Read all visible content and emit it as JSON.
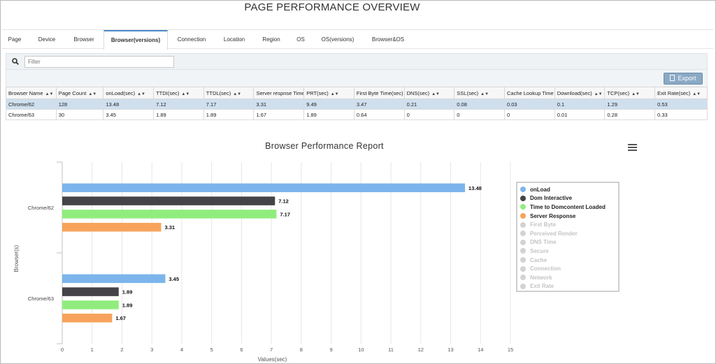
{
  "page": {
    "title": "PAGE PERFORMANCE OVERVIEW"
  },
  "tabs": [
    {
      "label": "Page"
    },
    {
      "label": "Device"
    },
    {
      "label": "Browser"
    },
    {
      "label": "Browser(versions)",
      "active": true
    },
    {
      "label": "Connection"
    },
    {
      "label": "Location"
    },
    {
      "label": "Region"
    },
    {
      "label": "OS"
    },
    {
      "label": "OS(versions)"
    },
    {
      "label": "Browser&OS"
    }
  ],
  "filter": {
    "placeholder": "Filter",
    "icon": "search-icon"
  },
  "toolbar": {
    "export_label": "Export",
    "export_icon": "document-icon"
  },
  "table": {
    "columns": [
      "Browser Name",
      "Page Count",
      "onLoad(sec)",
      "TTDI(sec)",
      "TTDL(sec)",
      "Server respnse Time",
      "PRT(sec)",
      "First Byte Time(sec)",
      "DNS(sec)",
      "SSL(sec)",
      "Cache Lookup Time",
      "Download(sec)",
      "TCP(sec)",
      "Exit Rate(sec)"
    ],
    "rows": [
      [
        "Chrome/62",
        "128",
        "13.48",
        "7.12",
        "7.17",
        "3.31",
        "9.49",
        "3.47",
        "0.21",
        "0.08",
        "0.03",
        "0.1",
        "1.29",
        "0.53"
      ],
      [
        "Chrome/63",
        "30",
        "3.45",
        "1.89",
        "1.89",
        "1.67",
        "1.89",
        "0.64",
        "0",
        "0",
        "0",
        "0.01",
        "0.28",
        "0.33"
      ]
    ],
    "selected_row": 0,
    "sort_icon": "sort-icon"
  },
  "chart": {
    "menu_icon": "hamburger-menu-icon"
  },
  "chart_data": {
    "type": "bar",
    "orientation": "horizontal",
    "title": "Browser Performance Report",
    "xlabel": "Values(sec)",
    "ylabel": "Browser(s)",
    "categories": [
      "Chrome/62",
      "Chrome/63"
    ],
    "xlim": [
      0,
      15
    ],
    "xticks": [
      "0",
      "1",
      "2",
      "3",
      "4",
      "5",
      "6",
      "7",
      "8",
      "9",
      "10",
      "11",
      "12",
      "13",
      "14",
      "15"
    ],
    "grid": true,
    "legend_placement": "right",
    "series": [
      {
        "name": "onLoad",
        "color": "#7cb5ec",
        "visible": true,
        "values": [
          13.48,
          3.45
        ]
      },
      {
        "name": "Dom Interactive",
        "color": "#434348",
        "visible": true,
        "values": [
          7.12,
          1.89
        ]
      },
      {
        "name": "Time to Domcontent Loaded",
        "color": "#90ed7d",
        "visible": true,
        "values": [
          7.17,
          1.89
        ]
      },
      {
        "name": "Server Response",
        "color": "#f7a35c",
        "visible": true,
        "values": [
          3.31,
          1.67
        ]
      },
      {
        "name": "First Byte",
        "color": "#8085e9",
        "visible": false,
        "values": [
          3.47,
          0.64
        ]
      },
      {
        "name": "Perceived Render",
        "color": "#f15c80",
        "visible": false,
        "values": [
          9.49,
          1.89
        ]
      },
      {
        "name": "DNS Time",
        "color": "#e4d354",
        "visible": false,
        "values": [
          0.21,
          0
        ]
      },
      {
        "name": "Secure",
        "color": "#2b908f",
        "visible": false,
        "values": [
          0.08,
          0
        ]
      },
      {
        "name": "Cache",
        "color": "#f45b5b",
        "visible": false,
        "values": [
          0.03,
          0
        ]
      },
      {
        "name": "Connection",
        "color": "#91e8e1",
        "visible": false,
        "values": [
          1.29,
          0.28
        ]
      },
      {
        "name": "Network",
        "color": "#7cb5ec",
        "visible": false,
        "values": [
          0.1,
          0.01
        ]
      },
      {
        "name": "Exit Rate",
        "color": "#434348",
        "visible": false,
        "values": [
          0.53,
          0.33
        ]
      }
    ]
  }
}
